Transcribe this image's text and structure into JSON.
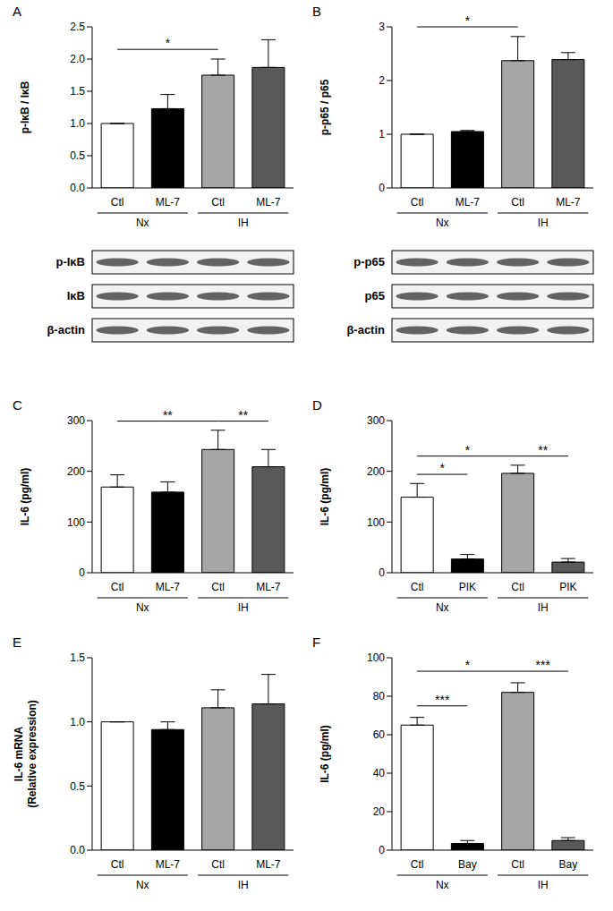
{
  "chart_data": [
    {
      "panel": "A",
      "type": "bar",
      "categories": [
        "Ctl",
        "ML-7",
        "Ctl",
        "ML-7"
      ],
      "groups": [
        "Nx",
        "IH"
      ],
      "values": [
        1.0,
        1.23,
        1.75,
        1.87
      ],
      "errors": [
        0,
        0.22,
        0.25,
        0.43
      ],
      "colors": [
        "#ffffff",
        "#000000",
        "#a6a6a6",
        "#595959"
      ],
      "y_label": "p-IκB / IκB",
      "ylim": [
        0,
        2.5
      ],
      "yticks": [
        {
          "value": 0,
          "label": "0.0"
        },
        {
          "value": 0.5,
          "label": "0.5"
        },
        {
          "value": 1,
          "label": "1.0"
        },
        {
          "value": 1.5,
          "label": "1.5"
        },
        {
          "value": 2,
          "label": "2.0"
        },
        {
          "value": 2.5,
          "label": "2.5"
        }
      ],
      "significance": [
        {
          "from": 0,
          "to": 2,
          "label": "*"
        }
      ],
      "blots": [
        "p-IκB",
        "IκB",
        "β-actin"
      ]
    },
    {
      "panel": "B",
      "type": "bar",
      "categories": [
        "Ctl",
        "ML-7",
        "Ctl",
        "ML-7"
      ],
      "groups": [
        "Nx",
        "IH"
      ],
      "values": [
        1.0,
        1.05,
        2.37,
        2.39
      ],
      "errors": [
        0,
        0.02,
        0.45,
        0.13
      ],
      "colors": [
        "#ffffff",
        "#000000",
        "#a6a6a6",
        "#595959"
      ],
      "y_label": "p-p65 / p65",
      "ylim": [
        0,
        3
      ],
      "yticks": [
        0,
        1,
        2,
        3
      ],
      "significance": [
        {
          "from": 0,
          "to": 2,
          "label": "*"
        }
      ],
      "blots": [
        "p-p65",
        "p65",
        "β-actin"
      ]
    },
    {
      "panel": "C",
      "type": "bar",
      "categories": [
        "Ctl",
        "ML-7",
        "Ctl",
        "ML-7"
      ],
      "groups": [
        "Nx",
        "IH"
      ],
      "values": [
        169,
        159,
        243,
        209
      ],
      "errors": [
        24,
        20,
        38,
        34
      ],
      "colors": [
        "#ffffff",
        "#000000",
        "#a6a6a6",
        "#595959"
      ],
      "y_label": "IL-6 (pg/ml)",
      "ylim": [
        0,
        300
      ],
      "yticks": [
        0,
        100,
        200,
        300
      ],
      "significance": [
        {
          "from": 0,
          "to": 2,
          "label": "**"
        },
        {
          "from": 2,
          "to": 3,
          "label": "**"
        }
      ]
    },
    {
      "panel": "D",
      "type": "bar",
      "categories": [
        "Ctl",
        "PIK",
        "Ctl",
        "PIK"
      ],
      "groups": [
        "Nx",
        "IH"
      ],
      "values": [
        149,
        27,
        196,
        21
      ],
      "errors": [
        27,
        9,
        16,
        7
      ],
      "colors": [
        "#ffffff",
        "#000000",
        "#a6a6a6",
        "#595959"
      ],
      "y_label": "IL-6 (pg/ml)",
      "ylim": [
        0,
        300
      ],
      "yticks": [
        0,
        100,
        200,
        300
      ],
      "significance": [
        {
          "from": 0,
          "to": 1,
          "label": "*"
        },
        {
          "from": 0,
          "to": 2,
          "label": "*"
        },
        {
          "from": 2,
          "to": 3,
          "label": "**"
        }
      ]
    },
    {
      "panel": "E",
      "type": "bar",
      "categories": [
        "Ctl",
        "ML-7",
        "Ctl",
        "ML-7"
      ],
      "groups": [
        "Nx",
        "IH"
      ],
      "values": [
        1.0,
        0.94,
        1.11,
        1.14
      ],
      "errors": [
        0,
        0.06,
        0.14,
        0.23
      ],
      "colors": [
        "#ffffff",
        "#000000",
        "#a6a6a6",
        "#595959"
      ],
      "y_label": [
        "IL-6 mRNA",
        "(Relative expression)"
      ],
      "ylim": [
        0,
        1.5
      ],
      "yticks": [
        {
          "value": 0,
          "label": "0.0"
        },
        {
          "value": 0.5,
          "label": "0.5"
        },
        {
          "value": 1,
          "label": "1.0"
        },
        {
          "value": 1.5,
          "label": "1.5"
        }
      ],
      "significance": []
    },
    {
      "panel": "F",
      "type": "bar",
      "categories": [
        "Ctl",
        "Bay",
        "Ctl",
        "Bay"
      ],
      "groups": [
        "Nx",
        "IH"
      ],
      "values": [
        65,
        3.5,
        82,
        5
      ],
      "errors": [
        4,
        1.5,
        5,
        1.5
      ],
      "colors": [
        "#ffffff",
        "#000000",
        "#a6a6a6",
        "#595959"
      ],
      "y_label": "IL-6 (pg/ml)",
      "ylim": [
        0,
        100
      ],
      "yticks": [
        0,
        20,
        40,
        60,
        80,
        100
      ],
      "significance": [
        {
          "from": 0,
          "to": 1,
          "label": "***"
        },
        {
          "from": 0,
          "to": 2,
          "label": "*"
        },
        {
          "from": 2,
          "to": 3,
          "label": "***"
        }
      ]
    }
  ]
}
